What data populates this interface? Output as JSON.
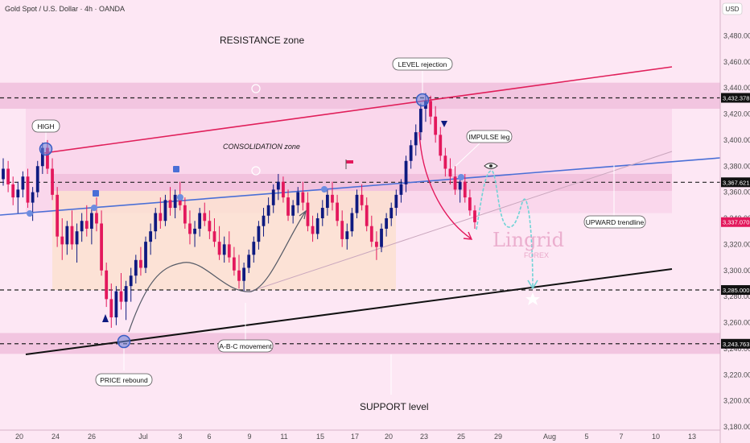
{
  "header": {
    "symbol": "Gold Spot / U.S. Dollar · 4h · OANDA",
    "currency": "USD"
  },
  "watermark": {
    "brand": "Lingrid",
    "sub": "FOREX"
  },
  "colors": {
    "background": "#fde7f4",
    "up": "#0e1a80",
    "down": "#e3185c",
    "trendline": "#4a6fd6",
    "channel_top": "#e01f5a",
    "support_line": "#111111",
    "projection": "#6fd3d6",
    "zone": "#e9a9cf",
    "range_box": "#fbe0cc"
  },
  "chart_data": {
    "type": "candlestick",
    "title": "Gold Spot / U.S. Dollar · 4h · OANDA",
    "ylim": [
      3180,
      3500
    ],
    "y_ticks": [
      3180,
      3200,
      3220,
      3240,
      3260,
      3280,
      3300,
      3320,
      3340,
      3360,
      3380,
      3400,
      3420,
      3440,
      3460,
      3480
    ],
    "x_labels": [
      "20",
      "24",
      "26",
      "Jul",
      "3",
      "6",
      "9",
      "11",
      "15",
      "17",
      "20",
      "23",
      "25",
      "29",
      "Aug",
      "5",
      "7",
      "10",
      "13"
    ],
    "price_levels": [
      {
        "value": 3432.378,
        "label": "3,432.378"
      },
      {
        "value": 3367.621,
        "label": "3,367.621"
      },
      {
        "value": 3285.0,
        "label": "3,285.000"
      },
      {
        "value": 3243.763,
        "label": "3,243.763"
      }
    ],
    "current_price": {
      "value": 3337.07,
      "label": "3,337.070"
    },
    "candles": [
      [
        3370,
        3386,
        3365,
        3378
      ],
      [
        3378,
        3384,
        3360,
        3366
      ],
      [
        3366,
        3372,
        3350,
        3356
      ],
      [
        3356,
        3368,
        3344,
        3362
      ],
      [
        3362,
        3376,
        3356,
        3372
      ],
      [
        3372,
        3378,
        3348,
        3352
      ],
      [
        3352,
        3364,
        3338,
        3360
      ],
      [
        3360,
        3384,
        3356,
        3380
      ],
      [
        3380,
        3398,
        3374,
        3394
      ],
      [
        3394,
        3400,
        3374,
        3378
      ],
      [
        3378,
        3386,
        3354,
        3358
      ],
      [
        3358,
        3364,
        3318,
        3326
      ],
      [
        3326,
        3340,
        3308,
        3320
      ],
      [
        3320,
        3338,
        3312,
        3334
      ],
      [
        3334,
        3346,
        3316,
        3320
      ],
      [
        3320,
        3336,
        3306,
        3330
      ],
      [
        3330,
        3344,
        3322,
        3338
      ],
      [
        3338,
        3350,
        3326,
        3332
      ],
      [
        3332,
        3348,
        3320,
        3344
      ],
      [
        3344,
        3356,
        3330,
        3336
      ],
      [
        3336,
        3346,
        3296,
        3300
      ],
      [
        3300,
        3306,
        3272,
        3278
      ],
      [
        3278,
        3290,
        3256,
        3264
      ],
      [
        3264,
        3288,
        3258,
        3284
      ],
      [
        3284,
        3298,
        3270,
        3276
      ],
      [
        3276,
        3292,
        3262,
        3288
      ],
      [
        3288,
        3302,
        3276,
        3296
      ],
      [
        3296,
        3312,
        3290,
        3308
      ],
      [
        3308,
        3318,
        3296,
        3302
      ],
      [
        3302,
        3326,
        3298,
        3322
      ],
      [
        3322,
        3336,
        3312,
        3330
      ],
      [
        3330,
        3348,
        3324,
        3344
      ],
      [
        3344,
        3356,
        3332,
        3338
      ],
      [
        3338,
        3358,
        3334,
        3354
      ],
      [
        3354,
        3364,
        3342,
        3348
      ],
      [
        3348,
        3362,
        3340,
        3358
      ],
      [
        3358,
        3368,
        3346,
        3350
      ],
      [
        3350,
        3356,
        3332,
        3336
      ],
      [
        3336,
        3346,
        3320,
        3328
      ],
      [
        3328,
        3338,
        3318,
        3332
      ],
      [
        3332,
        3348,
        3326,
        3344
      ],
      [
        3344,
        3352,
        3334,
        3338
      ],
      [
        3338,
        3346,
        3324,
        3330
      ],
      [
        3330,
        3340,
        3318,
        3322
      ],
      [
        3322,
        3334,
        3308,
        3312
      ],
      [
        3312,
        3326,
        3306,
        3320
      ],
      [
        3320,
        3330,
        3306,
        3310
      ],
      [
        3310,
        3318,
        3296,
        3300
      ],
      [
        3300,
        3312,
        3286,
        3292
      ],
      [
        3292,
        3306,
        3284,
        3302
      ],
      [
        3302,
        3316,
        3298,
        3312
      ],
      [
        3312,
        3326,
        3306,
        3322
      ],
      [
        3322,
        3338,
        3316,
        3334
      ],
      [
        3334,
        3348,
        3326,
        3342
      ],
      [
        3342,
        3356,
        3336,
        3350
      ],
      [
        3350,
        3366,
        3344,
        3362
      ],
      [
        3362,
        3374,
        3354,
        3368
      ],
      [
        3368,
        3372,
        3352,
        3356
      ],
      [
        3356,
        3362,
        3338,
        3342
      ],
      [
        3342,
        3354,
        3336,
        3350
      ],
      [
        3350,
        3364,
        3344,
        3360
      ],
      [
        3360,
        3368,
        3346,
        3352
      ],
      [
        3352,
        3360,
        3330,
        3334
      ],
      [
        3334,
        3342,
        3322,
        3328
      ],
      [
        3328,
        3344,
        3324,
        3340
      ],
      [
        3340,
        3354,
        3334,
        3348
      ],
      [
        3348,
        3362,
        3342,
        3358
      ],
      [
        3358,
        3368,
        3346,
        3352
      ],
      [
        3352,
        3358,
        3334,
        3338
      ],
      [
        3338,
        3346,
        3318,
        3324
      ],
      [
        3324,
        3336,
        3316,
        3330
      ],
      [
        3330,
        3348,
        3326,
        3344
      ],
      [
        3344,
        3362,
        3340,
        3358
      ],
      [
        3358,
        3366,
        3346,
        3350
      ],
      [
        3350,
        3356,
        3330,
        3334
      ],
      [
        3334,
        3342,
        3318,
        3322
      ],
      [
        3322,
        3330,
        3308,
        3318
      ],
      [
        3318,
        3336,
        3314,
        3332
      ],
      [
        3332,
        3344,
        3326,
        3340
      ],
      [
        3340,
        3352,
        3334,
        3348
      ],
      [
        3348,
        3362,
        3342,
        3358
      ],
      [
        3358,
        3370,
        3352,
        3366
      ],
      [
        3366,
        3388,
        3360,
        3384
      ],
      [
        3384,
        3400,
        3378,
        3396
      ],
      [
        3396,
        3412,
        3388,
        3406
      ],
      [
        3406,
        3428,
        3400,
        3424
      ],
      [
        3424,
        3436,
        3414,
        3430
      ],
      [
        3430,
        3434,
        3412,
        3418
      ],
      [
        3418,
        3426,
        3398,
        3404
      ],
      [
        3404,
        3410,
        3384,
        3388
      ],
      [
        3388,
        3394,
        3372,
        3378
      ],
      [
        3378,
        3386,
        3366,
        3372
      ],
      [
        3372,
        3380,
        3358,
        3362
      ],
      [
        3362,
        3372,
        3352,
        3368
      ],
      [
        3368,
        3374,
        3352,
        3356
      ],
      [
        3356,
        3362,
        3342,
        3346
      ],
      [
        3346,
        3350,
        3332,
        3337
      ]
    ]
  },
  "zones": {
    "resistance": {
      "from": 3424,
      "to": 3444,
      "label": "RESISTANCE zone"
    },
    "consolidation": {
      "from": 3344,
      "to": 3424,
      "label": "CONSOLIDATION zone"
    },
    "support_level": {
      "from": 3236,
      "to": 3252,
      "label": "SUPPORT level"
    }
  },
  "annotations": {
    "high": "HIGH",
    "level_rejection": "LEVEL rejection",
    "impulse_leg": "IMPULSE leg",
    "upward_trendline": "UPWARD trendline",
    "abc_movement": "A-B-C movement",
    "price_rebound": "PRICE rebound"
  }
}
